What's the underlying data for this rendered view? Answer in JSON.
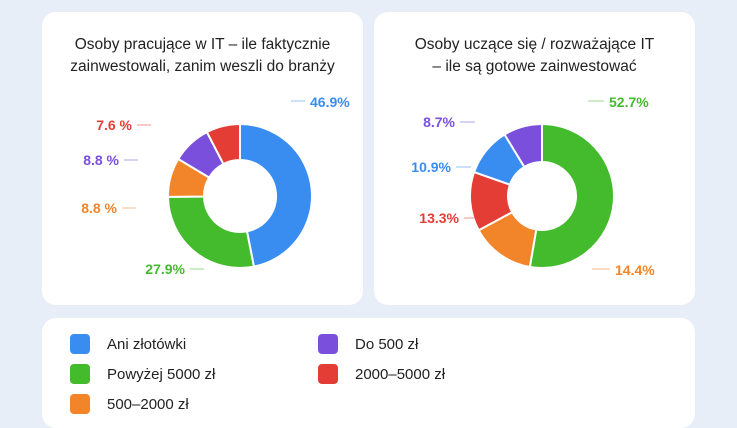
{
  "colors": {
    "blue": "#3a8df0",
    "green": "#44bb2c",
    "orange": "#f2852a",
    "purple": "#7a4fdc",
    "red": "#e43d36"
  },
  "legend": {
    "items": [
      {
        "label": "Ani złotówki",
        "color": "#3a8df0"
      },
      {
        "label": "Powyżej 5000 zł",
        "color": "#44bb2c"
      },
      {
        "label": "500–2000 zł",
        "color": "#f2852a"
      },
      {
        "label": "Do 500 zł",
        "color": "#7a4fdc"
      },
      {
        "label": "2000–5000 zł",
        "color": "#e43d36"
      }
    ]
  },
  "chart_data": [
    {
      "type": "pie",
      "title_lines": [
        "Osoby pracujące w IT – ile faktycznie",
        "zainwestowali, zanim weszli do branży"
      ],
      "unit": "%",
      "slices": [
        {
          "category": "Ani złotówki",
          "value": 46.9,
          "label": "46.9%",
          "color": "#3a8df0"
        },
        {
          "category": "Powyżej 5000 zł",
          "value": 27.9,
          "label": "27.9%",
          "color": "#44bb2c"
        },
        {
          "category": "500–2000 zł",
          "value": 8.8,
          "label": "8.8 %",
          "color": "#f2852a"
        },
        {
          "category": "Do 500 zł",
          "value": 8.8,
          "label": "8.8 %",
          "color": "#7a4fdc"
        },
        {
          "category": "2000–5000 zł",
          "value": 7.6,
          "label": "7.6 %",
          "color": "#e43d36"
        }
      ]
    },
    {
      "type": "pie",
      "title_lines": [
        "Osoby uczące się / rozważające IT",
        "– ile są gotowe zainwestować"
      ],
      "unit": "%",
      "slices": [
        {
          "category": "Powyżej 5000 zł",
          "value": 52.7,
          "label": "52.7%",
          "color": "#44bb2c"
        },
        {
          "category": "500–2000 zł",
          "value": 14.4,
          "label": "14.4%",
          "color": "#f2852a"
        },
        {
          "category": "2000–5000 zł",
          "value": 13.3,
          "label": "13.3%",
          "color": "#e43d36"
        },
        {
          "category": "Ani złotówki",
          "value": 10.9,
          "label": "10.9%",
          "color": "#3a8df0"
        },
        {
          "category": "Do 500 zł",
          "value": 8.7,
          "label": "8.7%",
          "color": "#7a4fdc"
        }
      ]
    }
  ]
}
